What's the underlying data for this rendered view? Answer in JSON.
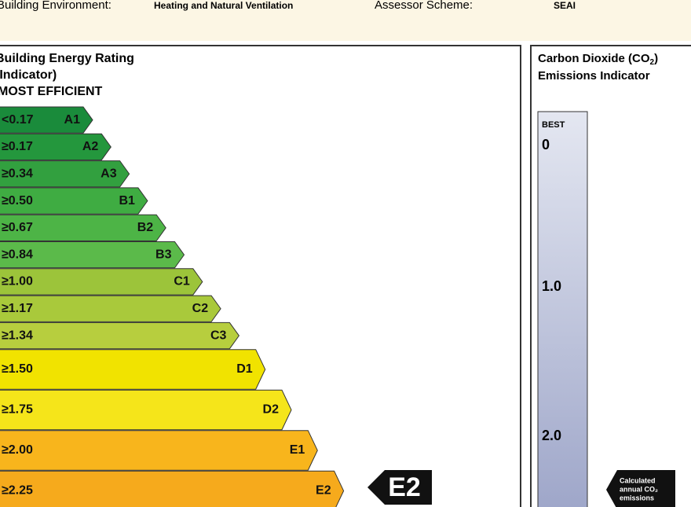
{
  "header": {
    "fields": [
      {
        "label": "Building Environment:",
        "value": "Heating and Natural Ventilation"
      },
      {
        "label": "Assessor Scheme:",
        "value": "SEAI"
      }
    ]
  },
  "ber": {
    "title": [
      "Building Energy Rating",
      "(Indicator)"
    ],
    "subtitle": "MOST EFFICIENT",
    "bands": [
      {
        "threshold": "<0.17",
        "grade": "A1",
        "color": "#1a8b3b"
      },
      {
        "threshold": "≥0.17",
        "grade": "A2",
        "color": "#24973d"
      },
      {
        "threshold": "≥0.34",
        "grade": "A3",
        "color": "#32a03f"
      },
      {
        "threshold": "≥0.50",
        "grade": "B1",
        "color": "#3fac42"
      },
      {
        "threshold": "≥0.67",
        "grade": "B2",
        "color": "#4db446"
      },
      {
        "threshold": "≥0.84",
        "grade": "B3",
        "color": "#5bba4a"
      },
      {
        "threshold": "≥1.00",
        "grade": "C1",
        "color": "#9cc43a"
      },
      {
        "threshold": "≥1.17",
        "grade": "C2",
        "color": "#a9c93b"
      },
      {
        "threshold": "≥1.34",
        "grade": "C3",
        "color": "#b7ce3e"
      },
      {
        "threshold": "≥1.50",
        "grade": "D1",
        "color": "#f1e300"
      },
      {
        "threshold": "≥1.75",
        "grade": "D2",
        "color": "#f5e51a"
      },
      {
        "threshold": "≥2.00",
        "grade": "E1",
        "color": "#f8b51c"
      },
      {
        "threshold": "≥2.25",
        "grade": "E2",
        "color": "#f6aa1c"
      }
    ],
    "current": "E2"
  },
  "co2": {
    "title": [
      "Carbon Dioxide (CO",
      "2",
      ")"
    ],
    "title_line2": "Emissions Indicator",
    "best": "BEST",
    "scale": [
      "0",
      "1.0",
      "2.0"
    ],
    "marker": [
      "Calculated",
      "annual CO₂",
      "emissions"
    ]
  }
}
